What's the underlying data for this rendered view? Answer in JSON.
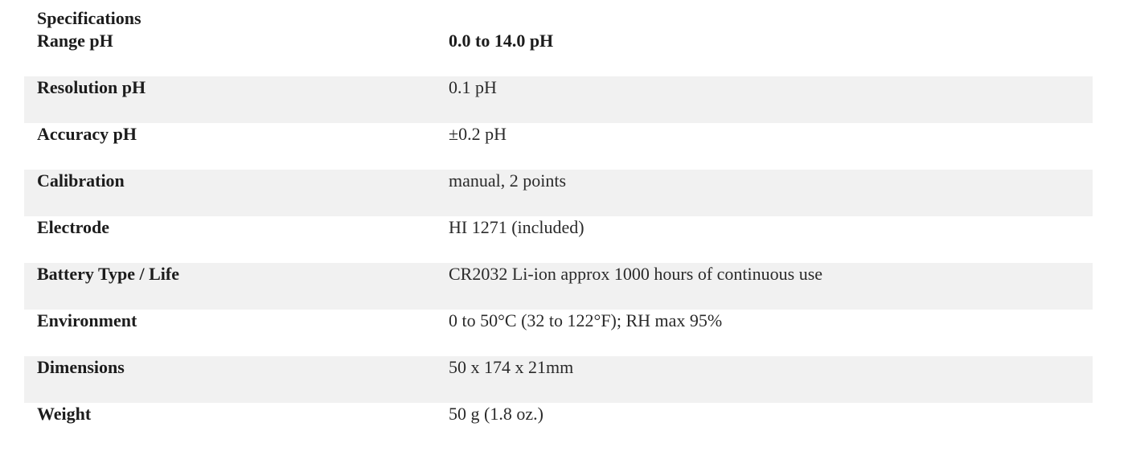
{
  "heading": "Specifications",
  "rows": [
    {
      "label": "Range pH",
      "value": "0.0 to 14.0 pH"
    },
    {
      "label": "Resolution pH",
      "value": "0.1 pH"
    },
    {
      "label": "Accuracy pH",
      "value": "±0.2 pH"
    },
    {
      "label": "Calibration",
      "value": "manual, 2 points"
    },
    {
      "label": "Electrode",
      "value": "HI 1271 (included)"
    },
    {
      "label": "Battery Type / Life",
      "value": "CR2032 Li-ion approx 1000 hours of continuous use"
    },
    {
      "label": "Environment",
      "value": "0 to 50°C (32 to 122°F); RH max 95%"
    },
    {
      "label": "Dimensions",
      "value": "50 x 174 x 21mm"
    },
    {
      "label": "Weight",
      "value": "50 g (1.8 oz.)"
    }
  ],
  "colors": {
    "row_shade": "#f1f1f1",
    "text": "#1c1c1c"
  }
}
